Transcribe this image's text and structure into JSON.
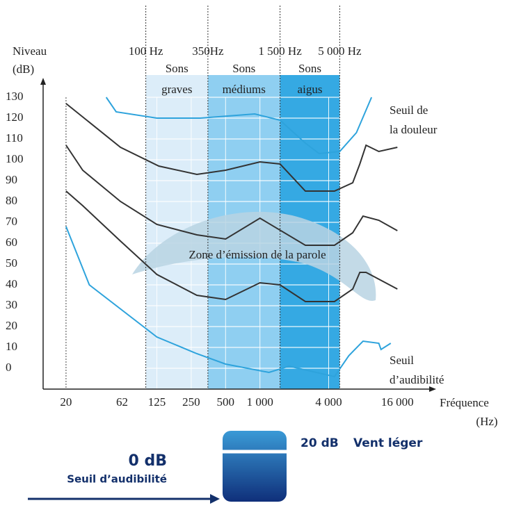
{
  "chart_data": {
    "type": "line",
    "ylabel": [
      "Niveau",
      "(dB)"
    ],
    "xlabel": [
      "Fréquence",
      "(Hz)"
    ],
    "xscale": "log",
    "xlim": [
      12.6,
      34000
    ],
    "ylim": [
      -10,
      135
    ],
    "xticks": [
      20,
      62,
      125,
      250,
      500,
      {
        "value": 1000,
        "label": "1 000"
      },
      {
        "value": 4000,
        "label": "4 000"
      },
      {
        "value": 16000,
        "label": "16 000"
      }
    ],
    "yticks": [
      0,
      10,
      20,
      30,
      40,
      50,
      60,
      70,
      80,
      90,
      100,
      110,
      120,
      130
    ],
    "grid": true,
    "boundaries": [
      {
        "value": 100,
        "label": "100 Hz"
      },
      {
        "value": 350,
        "label": "350Hz"
      },
      {
        "value": 1500,
        "label": "1 500 Hz"
      },
      {
        "value": 5000,
        "label": "5 000 Hz"
      }
    ],
    "bands": [
      {
        "from": 100,
        "to": 350,
        "label": [
          "Sons",
          "graves"
        ],
        "color": "#dcedf9"
      },
      {
        "from": 350,
        "to": 1500,
        "label": [
          "Sons",
          "médiums"
        ],
        "color": "#8fcff1"
      },
      {
        "from": 1500,
        "to": 5000,
        "label": [
          "Sons",
          "aigus"
        ],
        "color": "#35a9e3"
      }
    ],
    "annotation": "Zone d’émission de la parole",
    "series": [
      {
        "name": [
          "Seuil de",
          "la douleur"
        ],
        "color": "#2ea3dc",
        "x": [
          45,
          55,
          125,
          300,
          900,
          1500,
          2500,
          3300,
          5000,
          7000,
          9500
        ],
        "values": [
          130,
          123,
          120,
          120,
          122,
          119,
          108,
          103,
          104,
          113,
          130
        ]
      },
      {
        "color": "#333333",
        "x": [
          20,
          60,
          130,
          280,
          500,
          1000,
          1500,
          2500,
          4500,
          6500,
          7500,
          8500,
          11000,
          16000
        ],
        "values": [
          127,
          106,
          97,
          93,
          95,
          99,
          98,
          85,
          85,
          89,
          98,
          107,
          104,
          106
        ]
      },
      {
        "color": "#333333",
        "x": [
          20,
          28,
          60,
          125,
          280,
          500,
          1000,
          2500,
          4500,
          6500,
          8000,
          11000,
          16000
        ],
        "values": [
          107,
          95,
          80,
          69,
          64,
          62,
          72,
          59,
          59,
          65,
          73,
          71,
          66
        ]
      },
      {
        "color": "#333333",
        "x": [
          20,
          28,
          60,
          125,
          280,
          500,
          1000,
          1500,
          2500,
          4500,
          6500,
          7500,
          8500,
          16000
        ],
        "values": [
          85,
          78,
          61,
          45,
          35,
          33,
          41,
          40,
          32,
          32,
          38,
          46,
          46,
          38
        ]
      },
      {
        "name": [
          "Seuil",
          "d’audibilité"
        ],
        "color": "#2ea3dc",
        "x": [
          20,
          32,
          125,
          280,
          500,
          1200,
          1800,
          4500,
          6000,
          8000,
          11000,
          11500,
          14000
        ],
        "values": [
          68,
          40,
          15,
          7,
          2,
          -2,
          1,
          -4,
          6,
          13,
          12,
          9,
          12
        ]
      }
    ]
  },
  "illustration": {
    "level_top": "20 dB",
    "level_top_text": "Vent léger",
    "level_bottom": "0 dB",
    "level_bottom_text": "Seuil d’audibilité"
  }
}
